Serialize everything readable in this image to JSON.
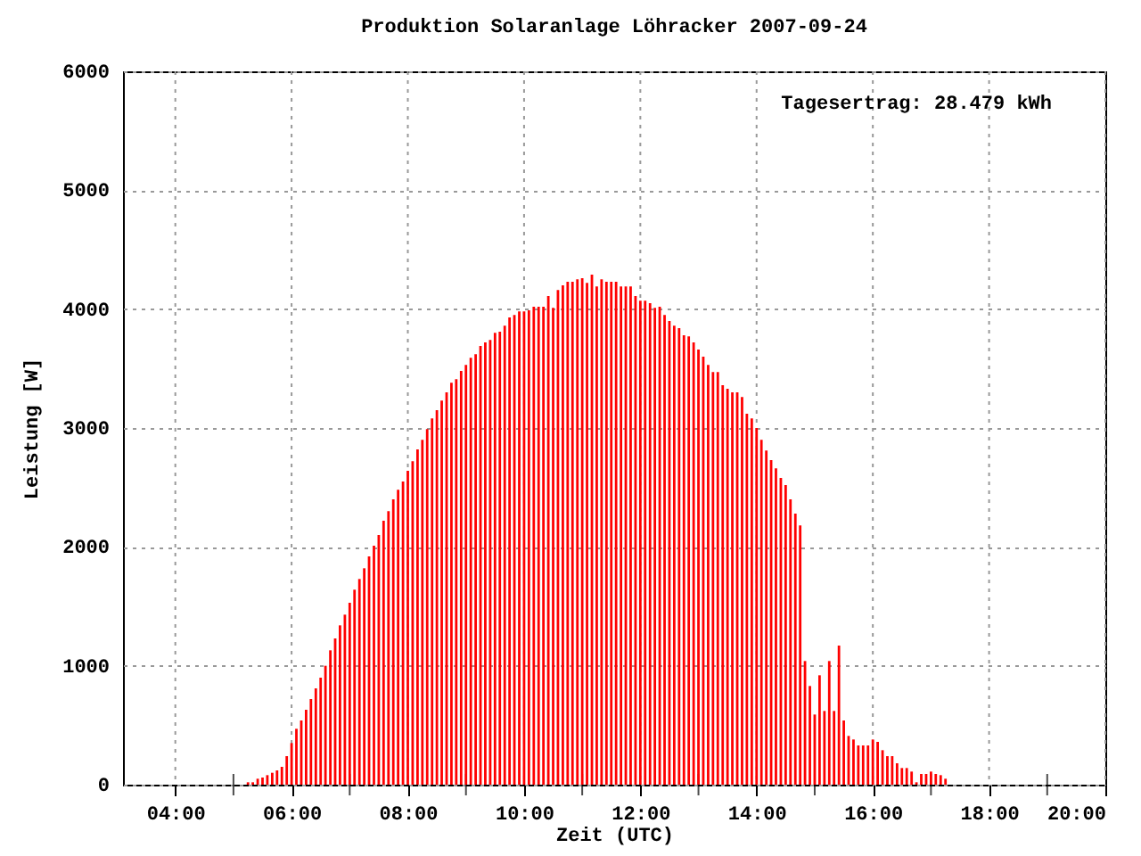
{
  "chart_data": {
    "type": "bar",
    "title": "Produktion Solaranlage Löhracker 2007-09-24",
    "xlabel": "Zeit (UTC)",
    "ylabel": "Leistung [W]",
    "annotations": [
      "Tagesertrag: 28.479 kWh"
    ],
    "x": [
      5.25,
      5.333,
      5.417,
      5.5,
      5.583,
      5.667,
      5.75,
      5.833,
      5.917,
      6,
      6.083,
      6.167,
      6.25,
      6.333,
      6.417,
      6.5,
      6.583,
      6.667,
      6.75,
      6.833,
      6.917,
      7,
      7.083,
      7.167,
      7.25,
      7.333,
      7.417,
      7.5,
      7.583,
      7.667,
      7.75,
      7.833,
      7.917,
      8,
      8.083,
      8.167,
      8.25,
      8.333,
      8.417,
      8.5,
      8.583,
      8.667,
      8.75,
      8.833,
      8.917,
      9,
      9.083,
      9.167,
      9.25,
      9.333,
      9.417,
      9.5,
      9.583,
      9.667,
      9.75,
      9.833,
      9.917,
      10,
      10.083,
      10.167,
      10.25,
      10.333,
      10.417,
      10.5,
      10.583,
      10.667,
      10.75,
      10.833,
      10.917,
      11,
      11.083,
      11.167,
      11.25,
      11.333,
      11.417,
      11.5,
      11.583,
      11.667,
      11.75,
      11.833,
      11.917,
      12,
      12.083,
      12.167,
      12.25,
      12.333,
      12.417,
      12.5,
      12.583,
      12.667,
      12.75,
      12.833,
      12.917,
      13,
      13.083,
      13.167,
      13.25,
      13.333,
      13.417,
      13.5,
      13.583,
      13.667,
      13.75,
      13.833,
      13.917,
      14,
      14.083,
      14.167,
      14.25,
      14.333,
      14.417,
      14.5,
      14.583,
      14.667,
      14.75,
      14.833,
      14.917,
      15,
      15.083,
      15.167,
      15.25,
      15.333,
      15.417,
      15.5,
      15.583,
      15.667,
      15.75,
      15.833,
      15.917,
      16,
      16.083,
      16.167,
      16.25,
      16.333,
      16.417,
      16.5,
      16.583,
      16.667,
      16.75,
      16.833,
      16.917,
      17,
      17.083,
      17.167,
      17.25
    ],
    "series": [
      {
        "color": "#ff0000",
        "values": [
          20,
          20,
          50,
          60,
          80,
          100,
          120,
          150,
          240,
          350,
          470,
          540,
          630,
          720,
          810,
          900,
          1000,
          1130,
          1230,
          1340,
          1430,
          1530,
          1640,
          1730,
          1820,
          1920,
          2010,
          2100,
          2220,
          2300,
          2400,
          2480,
          2550,
          2640,
          2720,
          2820,
          2900,
          2990,
          3080,
          3150,
          3230,
          3300,
          3380,
          3410,
          3480,
          3530,
          3590,
          3620,
          3690,
          3720,
          3740,
          3800,
          3810,
          3860,
          3930,
          3950,
          3980,
          3980,
          3990,
          4020,
          4020,
          4020,
          4110,
          4010,
          4160,
          4200,
          4230,
          4230,
          4250,
          4260,
          4220,
          4290,
          4190,
          4250,
          4230,
          4230,
          4230,
          4190,
          4190,
          4190,
          4110,
          4070,
          4070,
          4050,
          4010,
          4020,
          3950,
          3900,
          3860,
          3840,
          3780,
          3770,
          3720,
          3660,
          3600,
          3530,
          3470,
          3470,
          3360,
          3330,
          3300,
          3300,
          3260,
          3120,
          3080,
          3000,
          2900,
          2810,
          2730,
          2660,
          2580,
          2520,
          2400,
          2280,
          2180,
          1040,
          830,
          590,
          920,
          620,
          1040,
          620,
          1170,
          540,
          410,
          380,
          330,
          330,
          330,
          380,
          360,
          290,
          240,
          240,
          180,
          140,
          140,
          110,
          20,
          90,
          90,
          110,
          90,
          80,
          50
        ]
      }
    ],
    "xlim": [
      3.1,
      20
    ],
    "xticks": [
      {
        "value": 4,
        "label": "04:00"
      },
      {
        "value": 5,
        "label": null
      },
      {
        "value": 6,
        "label": "06:00"
      },
      {
        "value": 7,
        "label": null
      },
      {
        "value": 8,
        "label": "08:00"
      },
      {
        "value": 9,
        "label": null
      },
      {
        "value": 10,
        "label": "10:00"
      },
      {
        "value": 11,
        "label": null
      },
      {
        "value": 12,
        "label": "12:00"
      },
      {
        "value": 13,
        "label": null
      },
      {
        "value": 14,
        "label": "14:00"
      },
      {
        "value": 15,
        "label": null
      },
      {
        "value": 16,
        "label": "16:00"
      },
      {
        "value": 17,
        "label": null
      },
      {
        "value": 18,
        "label": "18:00"
      },
      {
        "value": 19,
        "label": null
      },
      {
        "value": 20,
        "label": "20:00"
      }
    ],
    "ylim": [
      0,
      6000
    ],
    "yticks": [
      0,
      1000,
      2000,
      3000,
      4000,
      5000,
      6000
    ],
    "grid": true
  }
}
